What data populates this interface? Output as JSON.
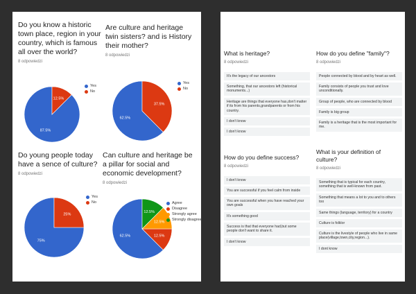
{
  "chart_data": [
    {
      "type": "pie",
      "title": "Do you know a historic town place, region in your country, which is famous all over the world?",
      "subtitle": "8 odpowiedzi",
      "categories": [
        "Yes",
        "No"
      ],
      "values": [
        87.5,
        12.5
      ],
      "value_labels": [
        "87.5%",
        "12.5%"
      ],
      "colors": [
        "#3366cc",
        "#dc3912"
      ]
    },
    {
      "type": "pie",
      "title": "Are culture and heritage twin sisters? and is History their mother?",
      "subtitle": "8 odpowiedzi",
      "categories": [
        "Yes",
        "No"
      ],
      "values": [
        62.5,
        37.5
      ],
      "value_labels": [
        "62.5%",
        "37.5%"
      ],
      "colors": [
        "#3366cc",
        "#dc3912"
      ]
    },
    {
      "type": "pie",
      "title": "Do young people today have a sence of culture?",
      "subtitle": "8 odpowiedzi",
      "categories": [
        "Yes",
        "No"
      ],
      "values": [
        75,
        25
      ],
      "value_labels": [
        "75%",
        "25%"
      ],
      "colors": [
        "#3366cc",
        "#dc3912"
      ]
    },
    {
      "type": "pie",
      "title": "Can culture and heritage be a pillar for social and economic development?",
      "subtitle": "8 odpowiedzi",
      "categories": [
        "Agree",
        "Disagree",
        "Strongly agree",
        "Strongly disagree"
      ],
      "values": [
        62.5,
        12.5,
        12.5,
        12.5
      ],
      "value_labels": [
        "62.5%",
        "12.5%",
        "12.5%",
        "12.5%"
      ],
      "colors": [
        "#3366cc",
        "#dc3912",
        "#ff9900",
        "#109618"
      ]
    }
  ],
  "answers": [
    {
      "question": "What is heritage?",
      "responses": "8 odpowiedzi",
      "items": [
        "It's the legacy of our ancestors",
        "Something, that our ancestors left (historical monuments...)",
        "Heritage are things that everyone has,don't matter if its from his parents,grandparents or from his country.",
        "I don't know",
        "I don't know"
      ]
    },
    {
      "question": "How do you define \"family\"?",
      "responses": "8 odpowiedzi",
      "items": [
        "People connected by blood and by heart as well.",
        "Family consists of people you trust and love unconditionally.",
        "Group of people, who are connected by blood",
        "Family is big group",
        "Family is a heritage that is the most important for me."
      ]
    },
    {
      "question": "How do you define success?",
      "responses": "8 odpowiedzi",
      "items": [
        "I don't know",
        "You are successful if you feel calm from inside",
        "You are successful when you have reached your own goals",
        "It's something good",
        "Success is that that everyone had,but some people don't want to share it.",
        "I don't know"
      ]
    },
    {
      "question": "What is your definition of culture?",
      "responses": "8 odpowiedzi",
      "items": [
        "Something that is typical for each country, something that is well-known from past.",
        "Something that means a lot to you and to others too",
        "Same things (language, territory) for a country",
        "Culture is folklor",
        "Culture is the livestyle of people who live in same place(village,town,city,region...).",
        "I dont know"
      ]
    }
  ]
}
